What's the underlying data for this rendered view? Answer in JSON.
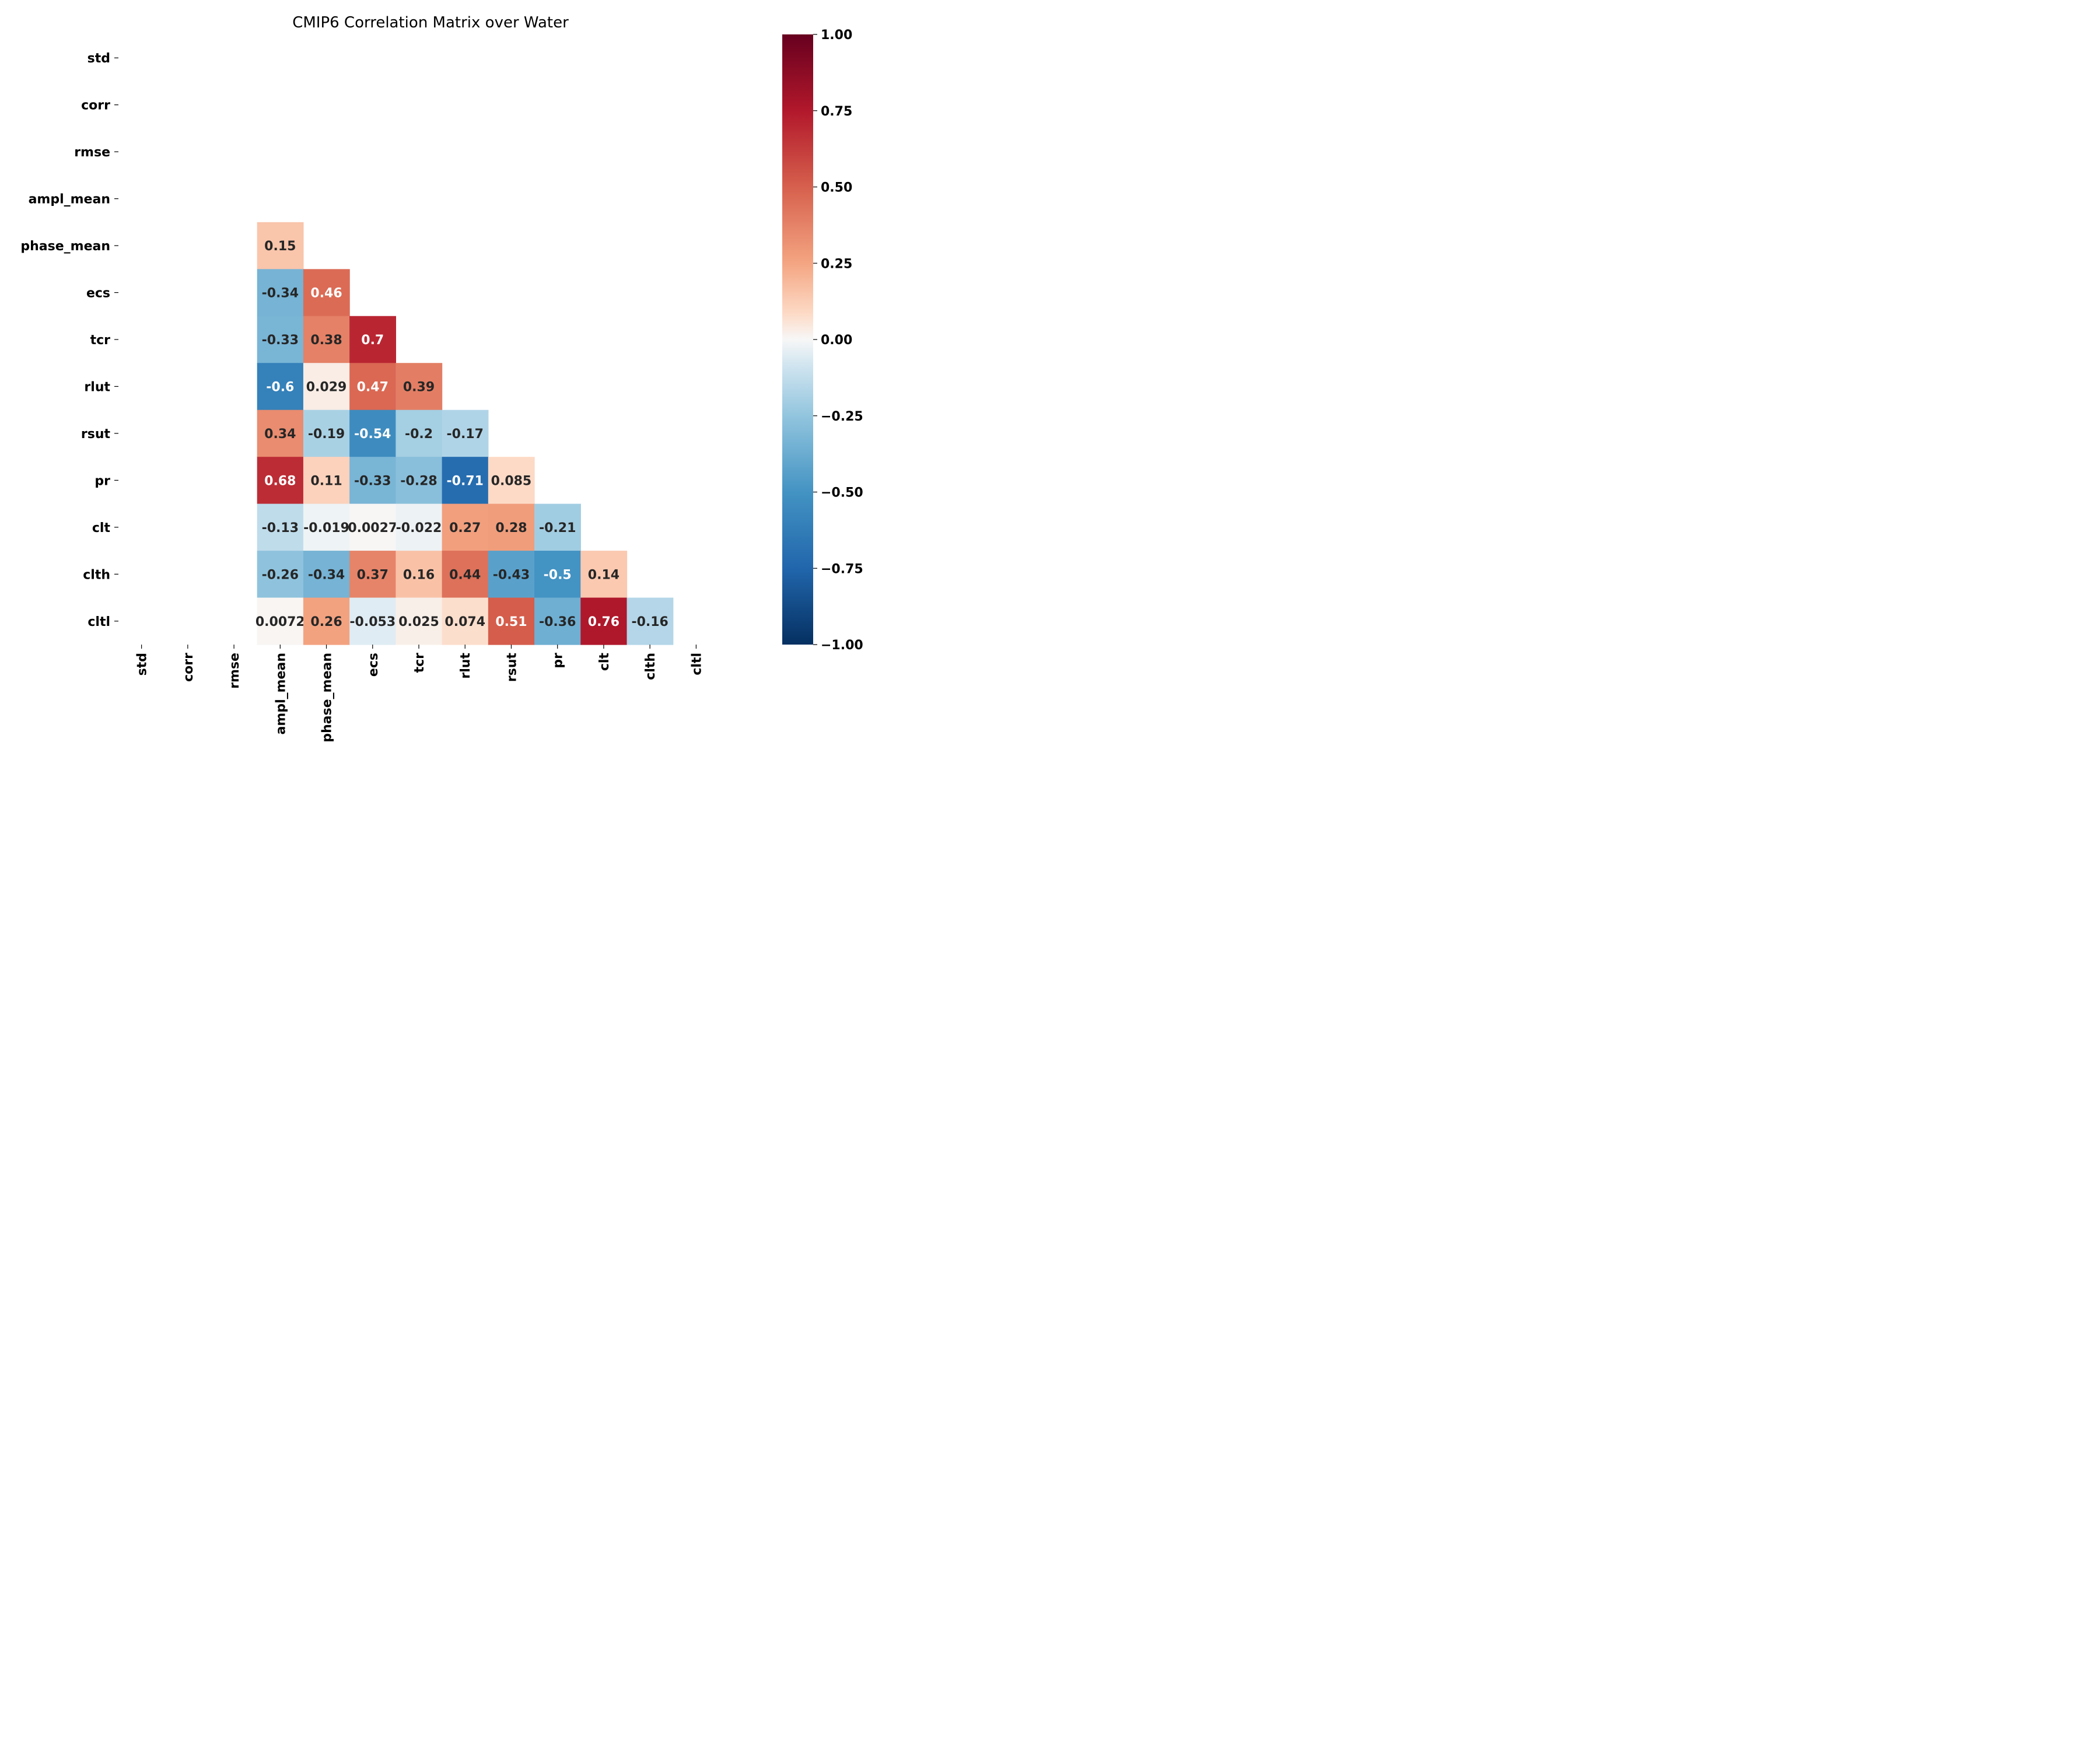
{
  "chart_data": {
    "type": "heatmap",
    "title": "CMIP6 Correlation Matrix over Water",
    "xlabel": "",
    "ylabel": "",
    "mask": "upper-triangle-including-diagonal",
    "colormap": "RdBu_r",
    "vmin": -1.0,
    "vmax": 1.0,
    "colorbar_ticks": [
      "1.00",
      "0.75",
      "0.50",
      "0.25",
      "0.00",
      "−0.25",
      "−0.50",
      "−0.75",
      "−1.00"
    ],
    "colorbar_tick_values": [
      1.0,
      0.75,
      0.5,
      0.25,
      0.0,
      -0.25,
      -0.5,
      -0.75,
      -1.0
    ],
    "variables": [
      "std",
      "corr",
      "rmse",
      "ampl_mean",
      "phase_mean",
      "ecs",
      "tcr",
      "rlut",
      "rsut",
      "pr",
      "clt",
      "clth",
      "cltl"
    ],
    "cells": [
      {
        "row": "phase_mean",
        "col": "ampl_mean",
        "value": 0.15,
        "label": "0.15"
      },
      {
        "row": "ecs",
        "col": "ampl_mean",
        "value": -0.34,
        "label": "-0.34"
      },
      {
        "row": "ecs",
        "col": "phase_mean",
        "value": 0.46,
        "label": "0.46"
      },
      {
        "row": "tcr",
        "col": "ampl_mean",
        "value": -0.33,
        "label": "-0.33"
      },
      {
        "row": "tcr",
        "col": "phase_mean",
        "value": 0.38,
        "label": "0.38"
      },
      {
        "row": "tcr",
        "col": "ecs",
        "value": 0.7,
        "label": "0.7"
      },
      {
        "row": "rlut",
        "col": "ampl_mean",
        "value": -0.6,
        "label": "-0.6"
      },
      {
        "row": "rlut",
        "col": "phase_mean",
        "value": 0.029,
        "label": "0.029"
      },
      {
        "row": "rlut",
        "col": "ecs",
        "value": 0.47,
        "label": "0.47"
      },
      {
        "row": "rlut",
        "col": "tcr",
        "value": 0.39,
        "label": "0.39"
      },
      {
        "row": "rsut",
        "col": "ampl_mean",
        "value": 0.34,
        "label": "0.34"
      },
      {
        "row": "rsut",
        "col": "phase_mean",
        "value": -0.19,
        "label": "-0.19"
      },
      {
        "row": "rsut",
        "col": "ecs",
        "value": -0.54,
        "label": "-0.54"
      },
      {
        "row": "rsut",
        "col": "tcr",
        "value": -0.2,
        "label": "-0.2"
      },
      {
        "row": "rsut",
        "col": "rlut",
        "value": -0.17,
        "label": "-0.17"
      },
      {
        "row": "pr",
        "col": "ampl_mean",
        "value": 0.68,
        "label": "0.68"
      },
      {
        "row": "pr",
        "col": "phase_mean",
        "value": 0.11,
        "label": "0.11"
      },
      {
        "row": "pr",
        "col": "ecs",
        "value": -0.33,
        "label": "-0.33"
      },
      {
        "row": "pr",
        "col": "tcr",
        "value": -0.28,
        "label": "-0.28"
      },
      {
        "row": "pr",
        "col": "rlut",
        "value": -0.71,
        "label": "-0.71"
      },
      {
        "row": "pr",
        "col": "rsut",
        "value": 0.085,
        "label": "0.085"
      },
      {
        "row": "clt",
        "col": "ampl_mean",
        "value": -0.13,
        "label": "-0.13"
      },
      {
        "row": "clt",
        "col": "phase_mean",
        "value": -0.019,
        "label": "-0.019"
      },
      {
        "row": "clt",
        "col": "ecs",
        "value": 0.0027,
        "label": "0.0027"
      },
      {
        "row": "clt",
        "col": "tcr",
        "value": -0.022,
        "label": "-0.022"
      },
      {
        "row": "clt",
        "col": "rlut",
        "value": 0.27,
        "label": "0.27"
      },
      {
        "row": "clt",
        "col": "rsut",
        "value": 0.28,
        "label": "0.28"
      },
      {
        "row": "clt",
        "col": "pr",
        "value": -0.21,
        "label": "-0.21"
      },
      {
        "row": "clth",
        "col": "ampl_mean",
        "value": -0.26,
        "label": "-0.26"
      },
      {
        "row": "clth",
        "col": "phase_mean",
        "value": -0.34,
        "label": "-0.34"
      },
      {
        "row": "clth",
        "col": "ecs",
        "value": 0.37,
        "label": "0.37"
      },
      {
        "row": "clth",
        "col": "tcr",
        "value": 0.16,
        "label": "0.16"
      },
      {
        "row": "clth",
        "col": "rlut",
        "value": 0.44,
        "label": "0.44"
      },
      {
        "row": "clth",
        "col": "rsut",
        "value": -0.43,
        "label": "-0.43"
      },
      {
        "row": "clth",
        "col": "pr",
        "value": -0.5,
        "label": "-0.5"
      },
      {
        "row": "clth",
        "col": "clt",
        "value": 0.14,
        "label": "0.14"
      },
      {
        "row": "cltl",
        "col": "ampl_mean",
        "value": 0.0072,
        "label": "0.0072"
      },
      {
        "row": "cltl",
        "col": "phase_mean",
        "value": 0.26,
        "label": "0.26"
      },
      {
        "row": "cltl",
        "col": "ecs",
        "value": -0.053,
        "label": "-0.053"
      },
      {
        "row": "cltl",
        "col": "tcr",
        "value": 0.025,
        "label": "0.025"
      },
      {
        "row": "cltl",
        "col": "rlut",
        "value": 0.074,
        "label": "0.074"
      },
      {
        "row": "cltl",
        "col": "rsut",
        "value": 0.51,
        "label": "0.51"
      },
      {
        "row": "cltl",
        "col": "pr",
        "value": -0.36,
        "label": "-0.36"
      },
      {
        "row": "cltl",
        "col": "clt",
        "value": 0.76,
        "label": "0.76"
      },
      {
        "row": "cltl",
        "col": "clth",
        "value": -0.16,
        "label": "-0.16"
      }
    ]
  }
}
